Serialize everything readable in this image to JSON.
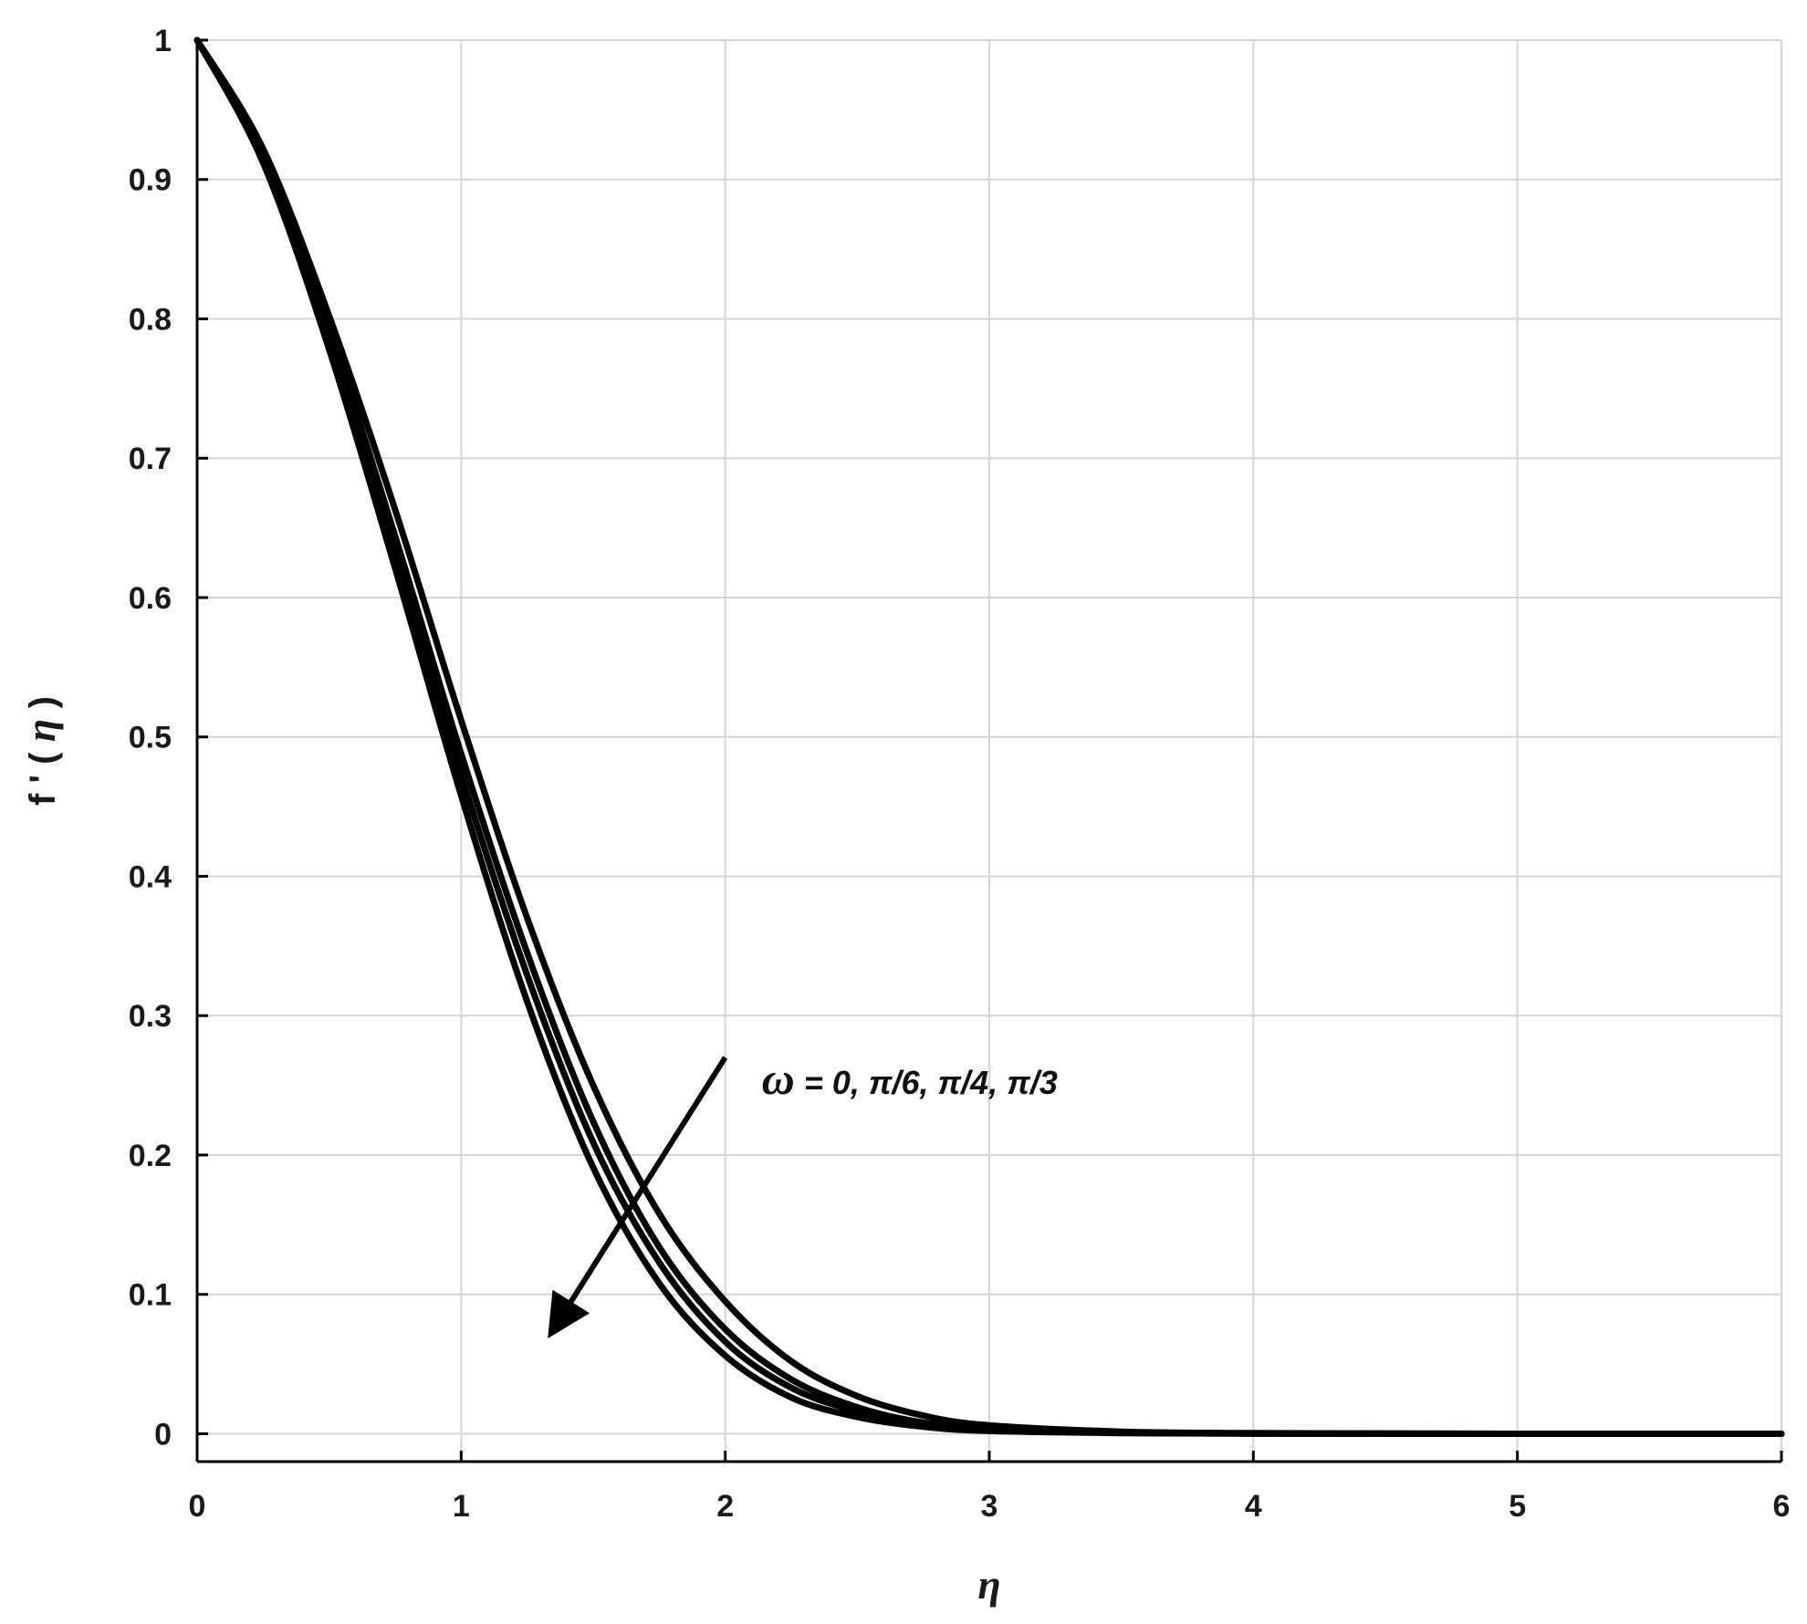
{
  "chart_data": {
    "type": "line",
    "title": "",
    "xlabel": "η",
    "ylabel_prefix": "f ' (",
    "ylabel_symbol": "η",
    "ylabel_suffix": ")",
    "xlim": [
      0,
      6
    ],
    "ylim": [
      -0.02,
      1
    ],
    "xticks": [
      0,
      1,
      2,
      3,
      4,
      5,
      6
    ],
    "xtick_labels": [
      "0",
      "1",
      "2",
      "3",
      "4",
      "5",
      "6"
    ],
    "yticks": [
      0,
      0.1,
      0.2,
      0.3,
      0.4,
      0.5,
      0.6,
      0.7,
      0.8,
      0.9,
      1
    ],
    "ytick_labels": [
      "0",
      "0.1",
      "0.2",
      "0.3",
      "0.4",
      "0.5",
      "0.6",
      "0.7",
      "0.8",
      "0.9",
      "1"
    ],
    "grid": true,
    "legend": "none",
    "line_color": "#000000",
    "grid_color": "#d4d4d4",
    "x": [
      0,
      0.25,
      0.5,
      0.75,
      1.0,
      1.25,
      1.5,
      1.75,
      2.0,
      2.25,
      2.5,
      2.75,
      3.0,
      3.5,
      4.0,
      5.0,
      6.0
    ],
    "series": [
      {
        "values": [
          1.0,
          0.922,
          0.802,
          0.663,
          0.512,
          0.37,
          0.25,
          0.158,
          0.095,
          0.052,
          0.027,
          0.013,
          0.006,
          0.0015,
          0.0004,
          0.0,
          0.0
        ]
      },
      {
        "values": [
          1.0,
          0.918,
          0.792,
          0.644,
          0.488,
          0.345,
          0.224,
          0.134,
          0.075,
          0.039,
          0.019,
          0.008,
          0.004,
          0.001,
          0.0002,
          0.0,
          0.0
        ]
      },
      {
        "values": [
          1.0,
          0.915,
          0.786,
          0.633,
          0.473,
          0.329,
          0.209,
          0.123,
          0.066,
          0.033,
          0.016,
          0.007,
          0.003,
          0.0007,
          0.0001,
          0.0,
          0.0
        ]
      },
      {
        "values": [
          1.0,
          0.912,
          0.778,
          0.621,
          0.458,
          0.31,
          0.191,
          0.108,
          0.056,
          0.026,
          0.012,
          0.005,
          0.002,
          0.0005,
          0.0001,
          0.0,
          0.0
        ]
      }
    ],
    "annotations": [
      {
        "symbol": "ω",
        "text": " = 0, π/6, π/4, π/3",
        "arrow_from": [
          2.0,
          0.27
        ],
        "arrow_to": [
          1.35,
          0.075
        ]
      }
    ]
  }
}
